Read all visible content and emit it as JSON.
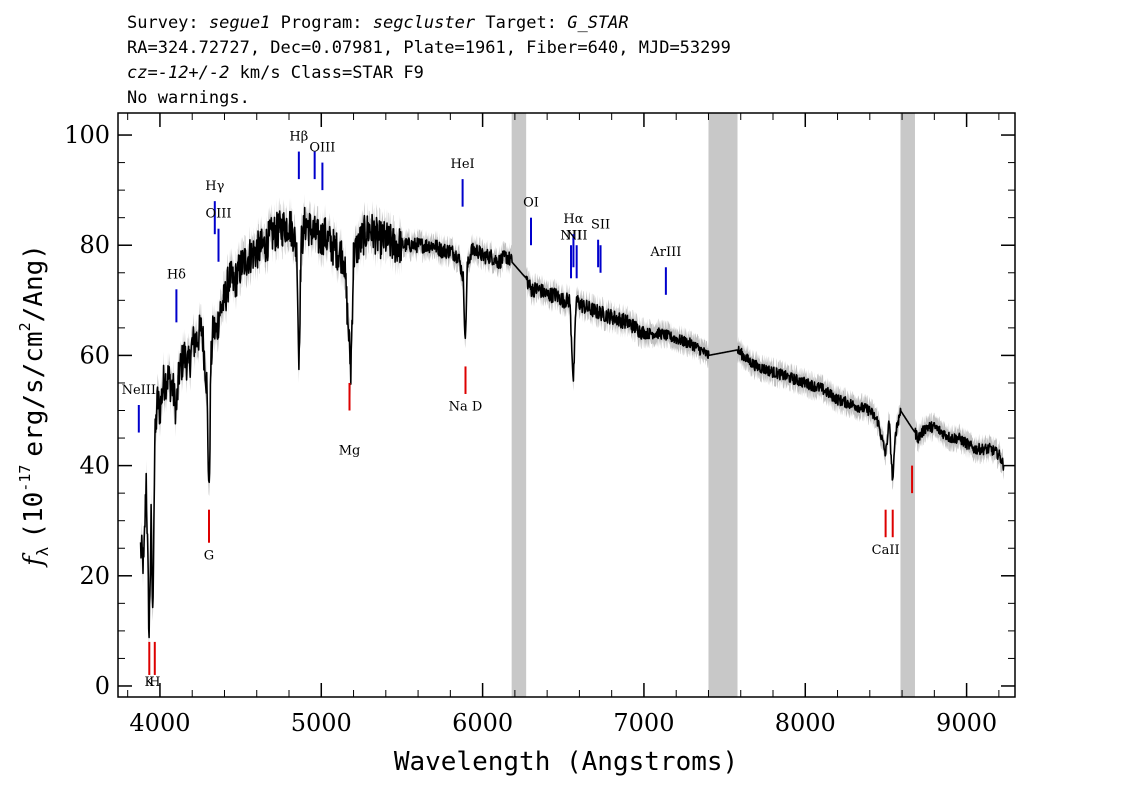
{
  "header": {
    "survey_label": "Survey:",
    "survey": "segue1",
    "program_label": "Program:",
    "program": "segcluster",
    "target_label": "Target:",
    "target": "G_STAR",
    "line2": "RA=324.72727, Dec=0.07981, Plate=1961, Fiber=640, MJD=53299",
    "cz_prefix": "cz=",
    "cz_value": "-12+/-2",
    "cz_suffix": " km/s Class=STAR F9",
    "line4": "No warnings."
  },
  "chart_data": {
    "type": "line",
    "xlabel": "Wavelength (Angstroms)",
    "ylabel_prefix": "f",
    "ylabel_sub": "λ",
    "ylabel_main": "(10",
    "ylabel_exp": "-17",
    "ylabel_mid": "erg/s/cm",
    "ylabel_exp2": "2",
    "ylabel_end": "/Ang)",
    "xlim": [
      3740,
      9300
    ],
    "ylim": [
      -2,
      104
    ],
    "xticks": [
      4000,
      5000,
      6000,
      7000,
      8000,
      9000
    ],
    "xtick_labels": [
      "4000",
      "5000",
      "6000",
      "7000",
      "8000",
      "9000"
    ],
    "yticks": [
      0,
      20,
      40,
      60,
      80,
      100
    ],
    "ytick_labels": [
      "0",
      "20",
      "40",
      "60",
      "80",
      "100"
    ],
    "masked_regions": [
      [
        6180,
        6270
      ],
      [
        7400,
        7580
      ],
      [
        8590,
        8680
      ]
    ],
    "colors": {
      "spectrum": "#000000",
      "error": "#c0c0c0",
      "mask": "#c8c8c8",
      "emission": "#0000cc",
      "absorption": "#dd0000"
    },
    "spectrum": {
      "x": [
        3880,
        3900,
        3915,
        3933,
        3945,
        3955,
        3968,
        3985,
        4000,
        4020,
        4050,
        4080,
        4101,
        4120,
        4150,
        4180,
        4200,
        4230,
        4260,
        4290,
        4305,
        4315,
        4330,
        4350,
        4370,
        4400,
        4430,
        4460,
        4500,
        4550,
        4600,
        4650,
        4700,
        4750,
        4800,
        4830,
        4850,
        4861,
        4875,
        4900,
        4930,
        4960,
        4990,
        5020,
        5060,
        5100,
        5140,
        5170,
        5183,
        5200,
        5230,
        5270,
        5300,
        5330,
        5360,
        5400,
        5450,
        5500,
        5550,
        5600,
        5650,
        5700,
        5750,
        5800,
        5850,
        5880,
        5893,
        5905,
        5930,
        5970,
        6000,
        6050,
        6100,
        6150,
        6180,
        6270,
        6300,
        6350,
        6400,
        6450,
        6500,
        6540,
        6563,
        6580,
        6620,
        6700,
        6800,
        6900,
        7000,
        7100,
        7200,
        7300,
        7400,
        7580,
        7650,
        7700,
        7800,
        7900,
        8000,
        8100,
        8200,
        8300,
        8400,
        8450,
        8498,
        8520,
        8542,
        8560,
        8590,
        8680,
        8700,
        8750,
        8800,
        8850,
        8900,
        8950,
        9000,
        9050,
        9100,
        9150,
        9200,
        9230
      ],
      "y": [
        25,
        22,
        38,
        9,
        30,
        12,
        44,
        52,
        50,
        55,
        56,
        54,
        50,
        57,
        60,
        58,
        62,
        63,
        65,
        55,
        34,
        58,
        65,
        64,
        68,
        70,
        74,
        73,
        76,
        78,
        79,
        80,
        82,
        83,
        84,
        82,
        78,
        58,
        80,
        84,
        83,
        82,
        81,
        82,
        80,
        79,
        78,
        64,
        57,
        78,
        80,
        82,
        83,
        82,
        81,
        81,
        80,
        80,
        80,
        80,
        80,
        80,
        79,
        79,
        78,
        74,
        62,
        76,
        79,
        79,
        78,
        78,
        77,
        78,
        77,
        74,
        72,
        72,
        71,
        71,
        70,
        70,
        55,
        70,
        69,
        68,
        67,
        66,
        64,
        64,
        63,
        62,
        60,
        61,
        59,
        58,
        57,
        56,
        55,
        54,
        52,
        51,
        50,
        48,
        42,
        48,
        37,
        46,
        50,
        46,
        45,
        47,
        47,
        46,
        45,
        45,
        44,
        43,
        43,
        43,
        42,
        40
      ]
    },
    "emission_lines": [
      {
        "label": "NeIII",
        "x": 3869,
        "y1": 46,
        "y2": 51,
        "label_y": 53
      },
      {
        "label": "Hδ",
        "x": 4102,
        "y1": 66,
        "y2": 72,
        "label_y": 74
      },
      {
        "label": "Hγ",
        "x": 4340,
        "y1": 82,
        "y2": 88,
        "label_y": 90
      },
      {
        "label": "OIII",
        "x": 4363,
        "y1": 77,
        "y2": 83,
        "label_y": 85
      },
      {
        "label": "Hβ",
        "x": 4861,
        "y1": 92,
        "y2": 97,
        "label_y": 99
      },
      {
        "label": "OIII",
        "x": 4959,
        "y1": 92,
        "y2": 97,
        "label_y": null
      },
      {
        "label": "OIII",
        "x": 5007,
        "y1": 90,
        "y2": 95,
        "label_y": 97
      },
      {
        "label": "HeI",
        "x": 5876,
        "y1": 87,
        "y2": 92,
        "label_y": 94
      },
      {
        "label": "OI",
        "x": 6300,
        "y1": 80,
        "y2": 85,
        "label_y": 87
      },
      {
        "label": "NII",
        "x": 6548,
        "y1": 74,
        "y2": 80,
        "label_y": 81
      },
      {
        "label": "Hα",
        "x": 6563,
        "y1": 76,
        "y2": 82,
        "label_y": 84
      },
      {
        "label": "NII",
        "x": 6583,
        "y1": 74,
        "y2": 80,
        "label_y": 81
      },
      {
        "label": "SII",
        "x": 6716,
        "y1": 76,
        "y2": 81,
        "label_y": null
      },
      {
        "label": "SII",
        "x": 6731,
        "y1": 75,
        "y2": 80,
        "label_y": 83
      },
      {
        "label": "ArIII",
        "x": 7136,
        "y1": 71,
        "y2": 76,
        "label_y": 78
      }
    ],
    "absorption_lines": [
      {
        "label": "K",
        "x": 3934,
        "y1": 2,
        "y2": 8,
        "label_y": 0
      },
      {
        "label": "H",
        "x": 3968,
        "y1": 2,
        "y2": 8,
        "label_y": 0
      },
      {
        "label": "G",
        "x": 4304,
        "y1": 26,
        "y2": 32,
        "label_y": 23
      },
      {
        "label": "Mg",
        "x": 5175,
        "y1": 55,
        "y2": 50,
        "label_y": 42
      },
      {
        "label": "Na D",
        "x": 5894,
        "y1": 53,
        "y2": 58,
        "label_y": 50
      },
      {
        "label": "CaII",
        "x": 8498,
        "y1": 27,
        "y2": 32,
        "label_y": 24
      },
      {
        "label": "CaII",
        "x": 8542,
        "y1": 27,
        "y2": 32,
        "label_y": null
      },
      {
        "label": "CaII",
        "x": 8662,
        "y1": 35,
        "y2": 40,
        "label_y": null
      }
    ]
  }
}
